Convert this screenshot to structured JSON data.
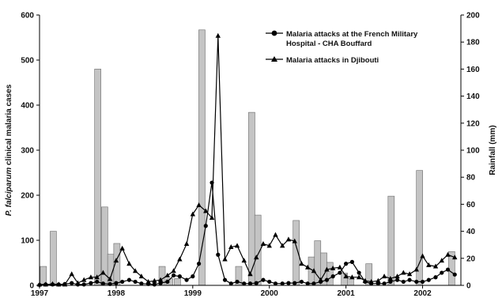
{
  "chart_data": {
    "type": "bar+line",
    "title": "",
    "ylabel_italic": "P. falciparum",
    "ylabel_rest": " clinical malaria cases",
    "y2label": "Rainfall (mm)",
    "xlabel": "",
    "ylim": [
      0,
      600
    ],
    "y2lim": [
      0,
      200
    ],
    "xlim": [
      1997,
      2002.5
    ],
    "y_ticks": [
      "0",
      "100",
      "200",
      "300",
      "400",
      "500",
      "600"
    ],
    "y2_ticks": [
      "0",
      "20",
      "40",
      "60",
      "80",
      "100",
      "120",
      "140",
      "160",
      "180",
      "200"
    ],
    "x_ticks": [
      {
        "value": 1997,
        "label": "1997"
      },
      {
        "value": 1998,
        "label": "1998"
      },
      {
        "value": 1999,
        "label": "1999"
      },
      {
        "value": 2000,
        "label": "2000"
      },
      {
        "value": 2001,
        "label": "2001"
      },
      {
        "value": 2002,
        "label": "2002"
      }
    ],
    "grid": false,
    "legend_position": "top-right",
    "bar_color": "#c4c4c4",
    "line_color": "#000000",
    "rainfall": [
      {
        "t": 1997.05,
        "mm": 14
      },
      {
        "t": 1997.18,
        "mm": 40
      },
      {
        "t": 1997.76,
        "mm": 160
      },
      {
        "t": 1997.85,
        "mm": 58
      },
      {
        "t": 1997.93,
        "mm": 23
      },
      {
        "t": 1998.01,
        "mm": 31
      },
      {
        "t": 1998.6,
        "mm": 14
      },
      {
        "t": 1998.7,
        "mm": 5
      },
      {
        "t": 1998.8,
        "mm": 5
      },
      {
        "t": 1999.12,
        "mm": 189
      },
      {
        "t": 1999.6,
        "mm": 14
      },
      {
        "t": 1999.77,
        "mm": 128
      },
      {
        "t": 1999.85,
        "mm": 52
      },
      {
        "t": 2000.35,
        "mm": 48
      },
      {
        "t": 2000.55,
        "mm": 21
      },
      {
        "t": 2000.63,
        "mm": 33
      },
      {
        "t": 2000.71,
        "mm": 24
      },
      {
        "t": 2000.79,
        "mm": 17
      },
      {
        "t": 2000.98,
        "mm": 9
      },
      {
        "t": 2001.06,
        "mm": 5
      },
      {
        "t": 2001.3,
        "mm": 16
      },
      {
        "t": 2001.59,
        "mm": 66
      },
      {
        "t": 2001.96,
        "mm": 85
      },
      {
        "t": 2002.38,
        "mm": 25
      }
    ],
    "series": [
      {
        "name": "Malaria attacks at the French Military Hospital - CHA Bouffard",
        "marker": "circle",
        "points": [
          [
            1997.0,
            1
          ],
          [
            1997.08,
            2
          ],
          [
            1997.17,
            2
          ],
          [
            1997.25,
            2
          ],
          [
            1997.33,
            3
          ],
          [
            1997.42,
            5
          ],
          [
            1997.5,
            2
          ],
          [
            1997.58,
            2
          ],
          [
            1997.67,
            5
          ],
          [
            1997.75,
            8
          ],
          [
            1997.83,
            4
          ],
          [
            1997.92,
            3
          ],
          [
            1998.0,
            5
          ],
          [
            1998.08,
            8
          ],
          [
            1998.17,
            12
          ],
          [
            1998.25,
            8
          ],
          [
            1998.33,
            4
          ],
          [
            1998.42,
            3
          ],
          [
            1998.5,
            2
          ],
          [
            1998.58,
            5
          ],
          [
            1998.67,
            8
          ],
          [
            1998.75,
            22
          ],
          [
            1998.83,
            20
          ],
          [
            1998.92,
            12
          ],
          [
            1999.0,
            20
          ],
          [
            1999.08,
            48
          ],
          [
            1999.17,
            132
          ],
          [
            1999.25,
            228
          ],
          [
            1999.33,
            68
          ],
          [
            1999.42,
            12
          ],
          [
            1999.5,
            4
          ],
          [
            1999.58,
            8
          ],
          [
            1999.67,
            4
          ],
          [
            1999.75,
            4
          ],
          [
            1999.83,
            5
          ],
          [
            1999.92,
            12
          ],
          [
            2000.0,
            8
          ],
          [
            2000.08,
            4
          ],
          [
            2000.17,
            4
          ],
          [
            2000.25,
            5
          ],
          [
            2000.33,
            5
          ],
          [
            2000.42,
            8
          ],
          [
            2000.5,
            4
          ],
          [
            2000.58,
            4
          ],
          [
            2000.67,
            8
          ],
          [
            2000.75,
            12
          ],
          [
            2000.83,
            20
          ],
          [
            2000.92,
            28
          ],
          [
            2001.0,
            48
          ],
          [
            2001.08,
            52
          ],
          [
            2001.17,
            28
          ],
          [
            2001.25,
            8
          ],
          [
            2001.33,
            4
          ],
          [
            2001.42,
            4
          ],
          [
            2001.5,
            4
          ],
          [
            2001.58,
            8
          ],
          [
            2001.67,
            12
          ],
          [
            2001.75,
            8
          ],
          [
            2001.83,
            12
          ],
          [
            2001.92,
            8
          ],
          [
            2002.0,
            8
          ],
          [
            2002.08,
            12
          ],
          [
            2002.17,
            18
          ],
          [
            2002.25,
            28
          ],
          [
            2002.33,
            35
          ],
          [
            2002.42,
            24
          ]
        ]
      },
      {
        "name": "Malaria attacks in Djibouti",
        "marker": "triangle",
        "points": [
          [
            1997.0,
            2
          ],
          [
            1997.08,
            2
          ],
          [
            1997.17,
            3
          ],
          [
            1997.25,
            2
          ],
          [
            1997.33,
            2
          ],
          [
            1997.42,
            25
          ],
          [
            1997.5,
            5
          ],
          [
            1997.58,
            12
          ],
          [
            1997.67,
            18
          ],
          [
            1997.75,
            18
          ],
          [
            1997.83,
            28
          ],
          [
            1997.92,
            14
          ],
          [
            1998.0,
            55
          ],
          [
            1998.08,
            82
          ],
          [
            1998.17,
            48
          ],
          [
            1998.25,
            32
          ],
          [
            1998.33,
            20
          ],
          [
            1998.42,
            8
          ],
          [
            1998.5,
            10
          ],
          [
            1998.58,
            12
          ],
          [
            1998.67,
            22
          ],
          [
            1998.75,
            32
          ],
          [
            1998.83,
            58
          ],
          [
            1998.92,
            92
          ],
          [
            1999.0,
            158
          ],
          [
            1999.08,
            178
          ],
          [
            1999.17,
            165
          ],
          [
            1999.25,
            150
          ],
          [
            1999.33,
            554
          ],
          [
            1999.42,
            58
          ],
          [
            1999.5,
            85
          ],
          [
            1999.58,
            88
          ],
          [
            1999.67,
            55
          ],
          [
            1999.75,
            25
          ],
          [
            1999.83,
            62
          ],
          [
            1999.92,
            92
          ],
          [
            2000.0,
            88
          ],
          [
            2000.08,
            112
          ],
          [
            2000.17,
            88
          ],
          [
            2000.25,
            102
          ],
          [
            2000.33,
            98
          ],
          [
            2000.42,
            48
          ],
          [
            2000.5,
            40
          ],
          [
            2000.58,
            32
          ],
          [
            2000.67,
            12
          ],
          [
            2000.75,
            35
          ],
          [
            2000.83,
            38
          ],
          [
            2000.92,
            40
          ],
          [
            2001.0,
            20
          ],
          [
            2001.08,
            18
          ],
          [
            2001.17,
            18
          ],
          [
            2001.25,
            10
          ],
          [
            2001.33,
            8
          ],
          [
            2001.42,
            10
          ],
          [
            2001.5,
            20
          ],
          [
            2001.58,
            15
          ],
          [
            2001.67,
            20
          ],
          [
            2001.75,
            28
          ],
          [
            2001.83,
            25
          ],
          [
            2001.92,
            35
          ],
          [
            2002.0,
            65
          ],
          [
            2002.08,
            45
          ],
          [
            2002.17,
            42
          ],
          [
            2002.25,
            55
          ],
          [
            2002.33,
            68
          ],
          [
            2002.42,
            62
          ]
        ]
      }
    ]
  }
}
